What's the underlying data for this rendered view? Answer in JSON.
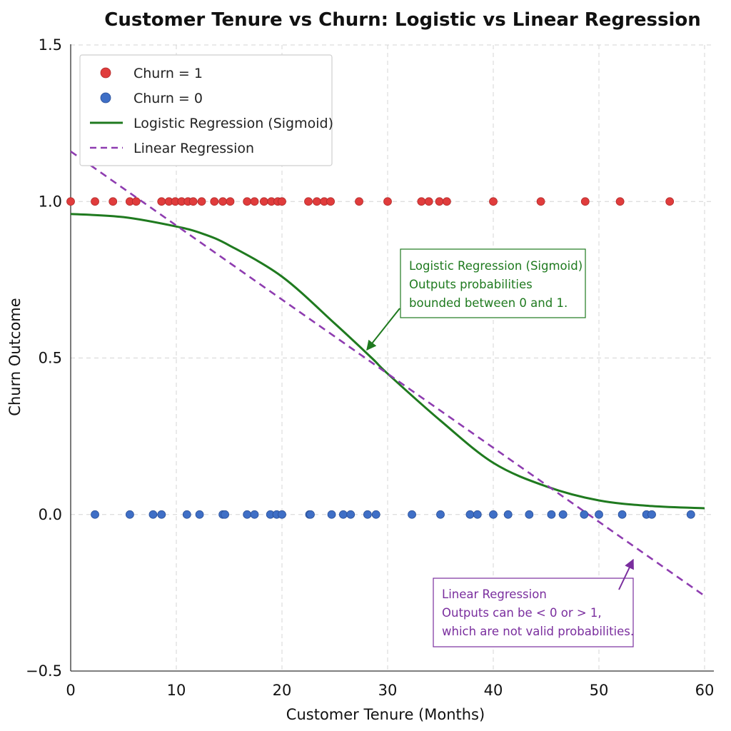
{
  "chart_data": {
    "type": "scatter",
    "title": "Customer Tenure vs Churn: Logistic vs Linear Regression",
    "xlabel": "Customer Tenure (Months)",
    "ylabel": "Churn Outcome",
    "xlim": [
      0,
      60
    ],
    "ylim": [
      -0.5,
      1.5
    ],
    "x_ticks": [
      "0",
      "10",
      "20",
      "30",
      "40",
      "50",
      "60"
    ],
    "y_ticks": [
      "−0.5",
      "0.0",
      "0.5",
      "1.0",
      "1.5"
    ],
    "grid": true,
    "legend_position": "top-left",
    "series": [
      {
        "name": "Churn = 1",
        "kind": "scatter",
        "color": "#e03c3c",
        "y": 1,
        "x": [
          0,
          2.3,
          4,
          5.6,
          6.2,
          8.6,
          9.3,
          9.9,
          10.5,
          11.1,
          11.6,
          12.4,
          13.6,
          14.4,
          15.1,
          16.7,
          17.4,
          18.3,
          19.0,
          19.6,
          20.0,
          22.5,
          23.3,
          24.0,
          24.6,
          27.3,
          30.0,
          33.2,
          33.9,
          34.9,
          35.6,
          40.0,
          44.5,
          48.7,
          52.0,
          56.7
        ]
      },
      {
        "name": "Churn = 0",
        "kind": "scatter",
        "color": "#3f6fc6",
        "y": 0,
        "x": [
          2.3,
          5.6,
          7.8,
          8.6,
          11.0,
          12.2,
          14.4,
          14.6,
          16.7,
          17.4,
          18.9,
          19.5,
          20.0,
          22.6,
          22.7,
          24.7,
          25.8,
          26.5,
          28.1,
          28.9,
          32.3,
          35.0,
          37.8,
          38.5,
          40.0,
          41.4,
          43.4,
          45.5,
          46.6,
          48.6,
          50.0,
          52.2,
          54.5,
          55.0,
          58.7
        ]
      },
      {
        "name": "Logistic Regression (Sigmoid)",
        "kind": "line",
        "color": "#1f7a1f",
        "dash": "solid",
        "x": [
          0,
          5,
          10,
          12.5,
          15,
          20,
          25,
          28.5,
          30,
          35,
          40,
          45,
          50,
          55,
          60
        ],
        "y": [
          0.96,
          0.95,
          0.92,
          0.897,
          0.86,
          0.76,
          0.61,
          0.5,
          0.45,
          0.3,
          0.165,
          0.09,
          0.045,
          0.027,
          0.02
        ]
      },
      {
        "name": "Linear Regression",
        "kind": "line",
        "color": "#8e3cb0",
        "dash": "dashed",
        "x": [
          0,
          60
        ],
        "y": [
          1.16,
          -0.26
        ]
      }
    ],
    "annotations": [
      {
        "lines": [
          "Logistic Regression (Sigmoid)",
          "Outputs probabilities",
          "bounded between 0 and 1."
        ],
        "color": "#1f7a1f",
        "arrow_to": [
          28.2,
          0.5
        ]
      },
      {
        "lines": [
          "Linear Regression",
          "Outputs can be < 0 or > 1,",
          "which are not valid probabilities."
        ],
        "color": "#7a2e9e",
        "arrow_to": [
          53.5,
          -0.105
        ]
      }
    ]
  }
}
